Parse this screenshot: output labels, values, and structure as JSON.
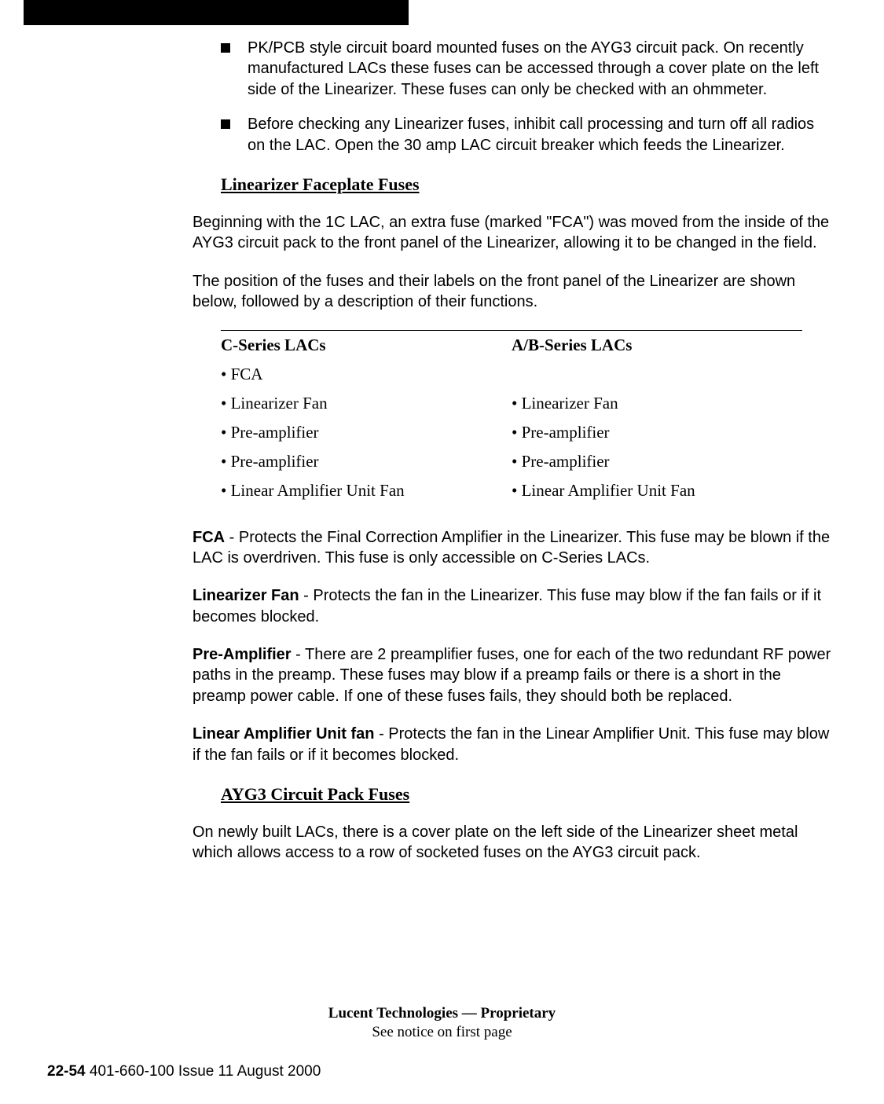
{
  "bullets": [
    "PK/PCB style circuit board mounted fuses on the AYG3 circuit pack. On recently manufactured LACs these fuses can be accessed through a cover plate on the left side of the Linearizer. These fuses can only be checked with an ohmmeter.",
    "Before checking any Linearizer fuses, inhibit call processing and turn off all radios on the LAC. Open the 30 amp LAC circuit breaker which feeds the Linearizer."
  ],
  "heading1": "Linearizer Faceplate Fuses",
  "para1": "Beginning with the 1C LAC, an extra fuse (marked \"FCA\") was moved from the inside of the AYG3 circuit pack to the front panel of the Linearizer, allowing it to be changed in the field.",
  "para2": "The position of the fuses and their labels on the front panel of the Linearizer are shown below, followed by a description of their functions.",
  "table": {
    "header_left": "C-Series LACs",
    "header_right": "A/B-Series LACs",
    "rows": [
      {
        "left": "• FCA",
        "right": ""
      },
      {
        "left": "• Linearizer Fan",
        "right": "• Linearizer Fan"
      },
      {
        "left": "• Pre-amplifier",
        "right": "• Pre-amplifier"
      },
      {
        "left": "• Pre-amplifier",
        "right": "• Pre-amplifier"
      },
      {
        "left": "• Linear Amplifier Unit Fan",
        "right": "• Linear Amplifier Unit Fan"
      }
    ]
  },
  "defs": {
    "fca_term": "FCA",
    "fca_body": " - Protects the Final Correction Amplifier in the Linearizer. This fuse may be blown if the LAC is overdriven. This fuse is only accessible on C-Series LACs.",
    "linfan_term": "Linearizer Fan",
    "linfan_body": " - Protects the fan in the Linearizer. This fuse may blow if the fan fails or if it becomes blocked.",
    "preamp_term": "Pre-Amplifier",
    "preamp_body": " - There are 2 preamplifier fuses, one for each of the two redundant RF power paths in the preamp. These fuses may blow if a preamp fails or there is a short in the preamp power cable. If one of these fuses fails, they should both be replaced.",
    "lau_term": "Linear Amplifier Unit fan",
    "lau_body": " - Protects the fan in the Linear Amplifier Unit. This fuse may blow if the fan fails or if it becomes blocked."
  },
  "heading2": "AYG3 Circuit Pack Fuses",
  "para3": "On newly built LACs, there is a cover plate on the left side of the Linearizer sheet metal which allows access to a row of socketed fuses on the AYG3 circuit pack.",
  "footer1": "Lucent Technologies — Proprietary",
  "footer2": "See notice on first page",
  "pagenum_bold": "22-54",
  "pagenum_rest": "   401-660-100 Issue 11    August 2000"
}
